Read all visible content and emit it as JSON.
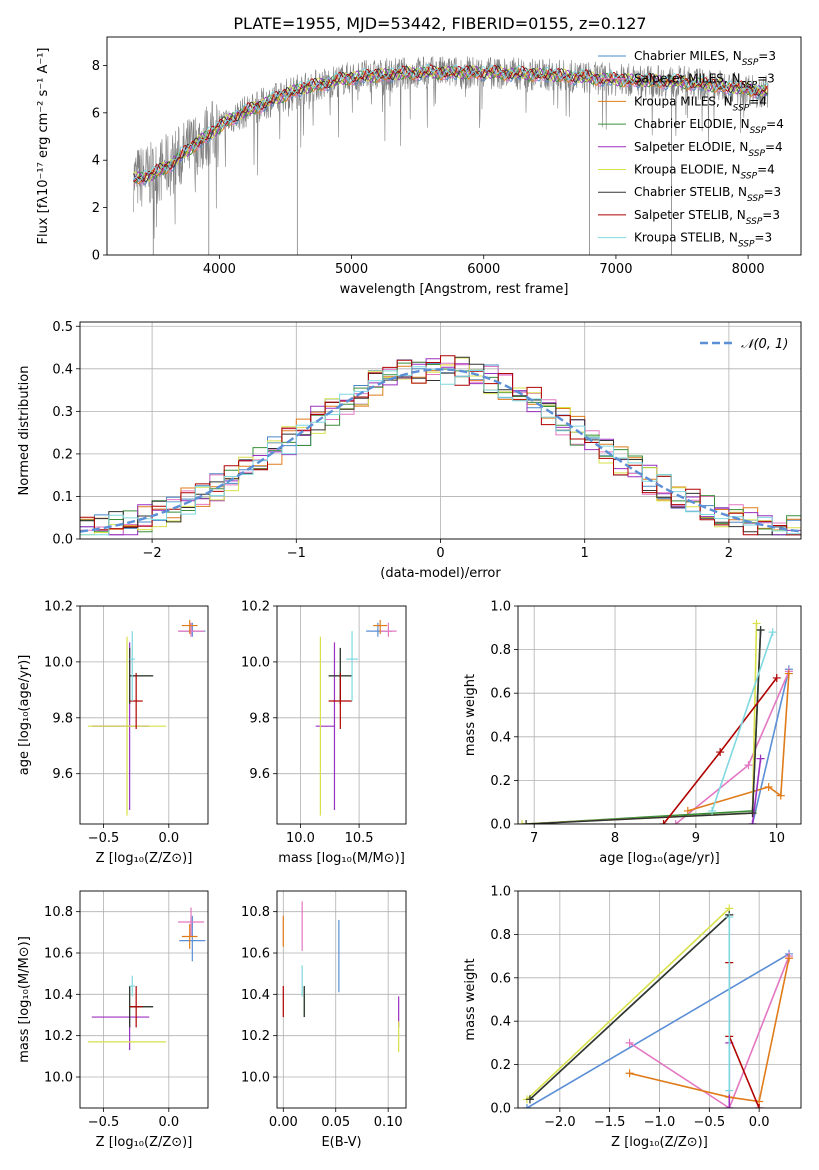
{
  "figure": {
    "title": "PLATE=1955, MJD=53442, FIBERID=0155, z=0.127"
  },
  "chart_data": [
    {
      "id": "spectrum",
      "type": "line",
      "title": "PLATE=1955, MJD=53442, FIBERID=0155, z=0.127",
      "xlabel": "wavelength [Angstrom, rest frame]",
      "ylabel": "Flux [fλ10⁻¹⁷ erg cm⁻² s⁻¹ A⁻¹]",
      "xlim": [
        3150,
        8400
      ],
      "ylim": [
        0,
        9.2
      ],
      "xticks": [
        4000,
        5000,
        6000,
        7000,
        8000
      ],
      "yticks": [
        0,
        2,
        4,
        6,
        8
      ],
      "grid": false,
      "legend": "top-right",
      "series": [
        {
          "name": "Chabrier MILES, N_SSP=3",
          "color": "#4a88c7"
        },
        {
          "name": "Salpeter MILES, N_SSP=3",
          "color": "#e377c2"
        },
        {
          "name": "Kroupa MILES, N_SSP=4",
          "color": "#e07b1a"
        },
        {
          "name": "Chabrier ELODIE, N_SSP=4",
          "color": "#3b8f3b"
        },
        {
          "name": "Salpeter ELODIE, N_SSP=4",
          "color": "#9b30c0"
        },
        {
          "name": "Kroupa ELODIE, N_SSP=4",
          "color": "#d8e04a"
        },
        {
          "name": "Chabrier STELIB, N_SSP=3",
          "color": "#333333"
        },
        {
          "name": "Salpeter STELIB, N_SSP=3",
          "color": "#b00000"
        },
        {
          "name": "Kroupa STELIB, N_SSP=3",
          "color": "#7fd8e0"
        }
      ],
      "data_color": "#808080",
      "continuum": [
        [
          3350,
          3.2
        ],
        [
          3500,
          3.4
        ],
        [
          3650,
          3.9
        ],
        [
          3800,
          4.6
        ],
        [
          3950,
          5.2
        ],
        [
          4100,
          5.8
        ],
        [
          4300,
          6.3
        ],
        [
          4600,
          7.0
        ],
        [
          5000,
          7.5
        ],
        [
          5500,
          7.7
        ],
        [
          6000,
          7.7
        ],
        [
          6500,
          7.6
        ],
        [
          7000,
          7.4
        ],
        [
          7500,
          7.3
        ],
        [
          8000,
          7.0
        ],
        [
          8150,
          6.9
        ]
      ]
    },
    {
      "id": "residuals",
      "type": "line",
      "xlabel": "(data-model)/error",
      "ylabel": "Normed distribution",
      "xlim": [
        -2.5,
        2.5
      ],
      "ylim": [
        0,
        0.51
      ],
      "xticks": [
        -2,
        -1,
        0,
        1,
        2
      ],
      "yticks": [
        0.0,
        0.1,
        0.2,
        0.3,
        0.4,
        0.5
      ],
      "grid": true,
      "legend": "top-right",
      "reference": {
        "name": "𝒩(0, 1)",
        "color": "#5b8fd6",
        "mean": 0,
        "sigma": 1
      },
      "histogram_bin_width": 0.1
    },
    {
      "id": "age-vs-Z",
      "type": "scatter",
      "xlabel": "Z [log₁₀(Z/Z⊙)]",
      "ylabel": "age  [log₁₀(age/yr)]",
      "xlim": [
        -0.68,
        0.3
      ],
      "ylim": [
        9.42,
        10.2
      ],
      "xticks": [
        -0.5,
        0.0
      ],
      "yticks": [
        9.6,
        9.8,
        10.0,
        10.2
      ],
      "grid": true
    },
    {
      "id": "age-vs-mass",
      "type": "scatter",
      "xlabel": "mass [log₁₀(M/M⊙)]",
      "ylabel": "",
      "xlim": [
        9.8,
        10.9
      ],
      "ylim": [
        9.42,
        10.2
      ],
      "xticks": [
        10.0,
        10.5
      ],
      "yticks": [
        9.6,
        9.8,
        10.0,
        10.2
      ],
      "grid": true
    },
    {
      "id": "weight-vs-age",
      "type": "line",
      "xlabel": "age  [log₁₀(age/yr)]",
      "ylabel": "mass weight",
      "xlim": [
        6.8,
        10.3
      ],
      "ylim": [
        0,
        1
      ],
      "xticks": [
        7,
        8,
        9,
        10
      ],
      "yticks": [
        0.0,
        0.2,
        0.4,
        0.6,
        0.8,
        1.0
      ],
      "grid": true
    },
    {
      "id": "mass-vs-Z",
      "type": "scatter",
      "xlabel": "Z [log₁₀(Z/Z⊙)]",
      "ylabel": "mass [log₁₀(M/M⊙)]",
      "xlim": [
        -0.68,
        0.3
      ],
      "ylim": [
        9.85,
        10.9
      ],
      "xticks": [
        -0.5,
        0.0
      ],
      "yticks": [
        10.0,
        10.2,
        10.4,
        10.6,
        10.8
      ],
      "grid": true
    },
    {
      "id": "mass-vs-ebv",
      "type": "scatter",
      "xlabel": "E(B-V)",
      "ylabel": "",
      "xlim": [
        -0.006,
        0.117
      ],
      "ylim": [
        9.85,
        10.9
      ],
      "xticks": [
        0.0,
        0.05,
        0.1
      ],
      "xticklabels": [
        "0.00",
        "0.05",
        "0.10"
      ],
      "yticks": [
        10.0,
        10.2,
        10.4,
        10.6,
        10.8
      ],
      "grid": true
    },
    {
      "id": "weight-vs-Z",
      "type": "line",
      "xlabel": "Z [log₁₀(Z/Z⊙)]",
      "ylabel": "mass weight",
      "xlim": [
        -2.42,
        0.42
      ],
      "ylim": [
        0,
        1
      ],
      "xticks": [
        -2.0,
        -1.5,
        -1.0,
        -0.5,
        0.0
      ],
      "yticks": [
        0.0,
        0.2,
        0.4,
        0.6,
        0.8,
        1.0
      ],
      "grid": true
    }
  ],
  "models": [
    {
      "color": "#5b8fd6",
      "age": 10.11,
      "dage": [
        0.02,
        0.03
      ],
      "Z": 0.18,
      "dZ": [
        0.1,
        0.1
      ],
      "mass": 10.66,
      "dmass": [
        0.1,
        0.12
      ],
      "ebv": 0.053,
      "debv": [
        0.43,
        0.27
      ],
      "age_w": [
        [
          9.7,
          0.0
        ],
        [
          10.15,
          0.71
        ]
      ],
      "Z_w": [
        [
          -2.33,
          0.0
        ],
        [
          0.3,
          0.71
        ]
      ]
    },
    {
      "color": "#e377c2",
      "age": 10.11,
      "dage": [
        0.02,
        0.03
      ],
      "Z": 0.17,
      "dZ": [
        0.1,
        0.1
      ],
      "mass": 10.75,
      "dmass": [
        0.07,
        0.07
      ],
      "ebv": 0.018,
      "debv": [
        0.09,
        0.1
      ],
      "age_w": [
        [
          8.75,
          0.0
        ],
        [
          9.65,
          0.27
        ],
        [
          10.15,
          0.7
        ]
      ],
      "Z_w": [
        [
          -1.3,
          0.3
        ],
        [
          -0.3,
          0.0
        ],
        [
          0.3,
          0.7
        ]
      ]
    },
    {
      "color": "#e07b1a",
      "age": 10.13,
      "dage": [
        0.03,
        0.02
      ],
      "Z": 0.16,
      "dZ": [
        0.06,
        0.06
      ],
      "mass": 10.68,
      "dmass": [
        0.06,
        0.06
      ],
      "ebv": 0.0,
      "debv": [
        0.0,
        0.0
      ],
      "age_w": [
        [
          8.9,
          0.06
        ],
        [
          9.9,
          0.17
        ],
        [
          10.05,
          0.13
        ],
        [
          10.15,
          0.69
        ]
      ],
      "Z_w": [
        [
          -1.3,
          0.16
        ],
        [
          -0.3,
          0.05
        ],
        [
          0.0,
          0.03
        ],
        [
          0.3,
          0.69
        ]
      ]
    },
    {
      "color": "#3b8f3b",
      "age": 9.95,
      "dage": [
        0.1,
        0.1
      ],
      "Z": -0.3,
      "dZ": [
        0.0,
        0.18
      ],
      "mass": 10.34,
      "dmass": [
        0.1,
        0.1
      ],
      "ebv": 0.02,
      "debv": [
        0.0,
        0.0
      ],
      "age_w": [
        [
          6.9,
          0.0
        ],
        [
          9.7,
          0.06
        ],
        [
          9.8,
          0.89
        ]
      ],
      "Z_w": [
        [
          -2.3,
          0.04
        ],
        [
          -0.3,
          0.89
        ]
      ]
    },
    {
      "color": "#9b30c0",
      "age": 9.77,
      "dage": [
        0.3,
        0.3
      ],
      "Z": -0.3,
      "dZ": [
        0.29,
        0.15
      ],
      "mass": 10.29,
      "dmass": [
        0.16,
        0.0
      ],
      "ebv": 0.11,
      "debv": [
        0.0,
        0.0
      ],
      "age_w": [
        [
          9.7,
          0.0
        ],
        [
          9.8,
          0.3
        ]
      ],
      "Z_w": [
        [
          -0.3,
          0.0
        ],
        [
          -0.3,
          0.3
        ]
      ]
    },
    {
      "color": "#d8e04a",
      "age": 9.77,
      "dage": [
        0.32,
        0.32
      ],
      "Z": -0.32,
      "dZ": [
        0.3,
        0.3
      ],
      "mass": 10.17,
      "dmass": [
        0.0,
        0.0
      ],
      "ebv": 0.11,
      "debv": [
        0.0,
        0.0
      ],
      "age_w": [
        [
          6.85,
          0.0
        ],
        [
          9.7,
          0.05
        ],
        [
          9.75,
          0.92
        ]
      ],
      "Z_w": [
        [
          -2.33,
          0.04
        ],
        [
          -0.3,
          0.92
        ]
      ]
    },
    {
      "color": "#333333",
      "age": 9.95,
      "dage": [
        0.1,
        0.1
      ],
      "Z": -0.3,
      "dZ": [
        0.0,
        0.18
      ],
      "mass": 10.34,
      "dmass": [
        0.1,
        0.1
      ],
      "ebv": 0.02,
      "debv": [
        0.0,
        0.0
      ],
      "age_w": [
        [
          6.9,
          0.0
        ],
        [
          9.7,
          0.05
        ],
        [
          9.8,
          0.89
        ]
      ],
      "Z_w": [
        [
          -2.3,
          0.04
        ],
        [
          -0.3,
          0.89
        ]
      ]
    },
    {
      "color": "#b00000",
      "age": 9.86,
      "dage": [
        0.1,
        0.1
      ],
      "Z": -0.25,
      "dZ": [
        0.05,
        0.05
      ],
      "mass": 10.34,
      "dmass": [
        0.1,
        0.1
      ],
      "ebv": 0.0,
      "debv": [
        0.0,
        0.0
      ],
      "age_w": [
        [
          8.6,
          0.0
        ],
        [
          9.3,
          0.33
        ],
        [
          10.0,
          0.67
        ]
      ],
      "Z_w": [
        [
          -0.3,
          0.67
        ],
        [
          -0.3,
          0.33
        ],
        [
          0.0,
          0.0
        ]
      ]
    },
    {
      "color": "#7fd8e0",
      "age": 10.01,
      "dage": [
        0.15,
        0.1
      ],
      "Z": -0.28,
      "dZ": [
        0.02,
        0.02
      ],
      "mass": 10.44,
      "dmass": [
        0.05,
        0.05
      ],
      "ebv": 0.018,
      "debv": [
        0.0,
        0.0
      ],
      "age_w": [
        [
          9.2,
          0.06
        ],
        [
          9.95,
          0.88
        ]
      ],
      "Z_w": [
        [
          -0.3,
          0.08
        ],
        [
          -0.3,
          0.88
        ]
      ]
    }
  ]
}
